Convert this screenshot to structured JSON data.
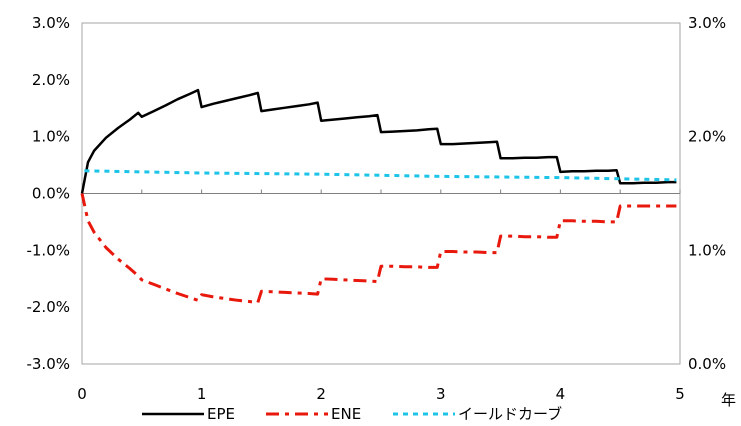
{
  "chart_data": {
    "type": "line",
    "xlabel": "年",
    "xlim": [
      0,
      5
    ],
    "x_ticks": [
      "0",
      "1",
      "2",
      "3",
      "4",
      "5"
    ],
    "ylim_left": [
      -0.03,
      0.03
    ],
    "y_ticks_left": [
      "3.0%",
      "2.0%",
      "1.0%",
      "0.0%",
      "-1.0%",
      "-2.0%",
      "-3.0%"
    ],
    "ylim_right": [
      0.0,
      0.03
    ],
    "y_ticks_right": [
      "3.0%",
      "2.0%",
      "1.0%",
      "0.0%"
    ],
    "grid": false,
    "legend_position": "bottom",
    "series": [
      {
        "name": "EPE",
        "axis": "left",
        "color": "#000000",
        "style": "solid",
        "x": [
          0,
          0.05,
          0.1,
          0.2,
          0.3,
          0.4,
          0.47,
          0.5,
          0.6,
          0.7,
          0.8,
          0.9,
          0.97,
          1.0,
          1.1,
          1.2,
          1.3,
          1.4,
          1.47,
          1.5,
          1.6,
          1.7,
          1.8,
          1.9,
          1.97,
          2.0,
          2.1,
          2.2,
          2.3,
          2.4,
          2.47,
          2.5,
          2.6,
          2.7,
          2.8,
          2.9,
          2.97,
          3.0,
          3.1,
          3.2,
          3.3,
          3.4,
          3.47,
          3.5,
          3.6,
          3.7,
          3.8,
          3.9,
          3.97,
          4.0,
          4.1,
          4.2,
          4.3,
          4.4,
          4.47,
          4.5,
          4.6,
          4.7,
          4.8,
          4.9,
          4.97
        ],
        "y": [
          0.0,
          0.0055,
          0.0075,
          0.0098,
          0.0115,
          0.013,
          0.0142,
          0.0135,
          0.0145,
          0.0155,
          0.0166,
          0.0175,
          0.0182,
          0.0152,
          0.0158,
          0.0163,
          0.0168,
          0.0173,
          0.0177,
          0.0145,
          0.0148,
          0.0151,
          0.0154,
          0.0157,
          0.016,
          0.0128,
          0.013,
          0.0132,
          0.0134,
          0.0136,
          0.0138,
          0.0108,
          0.0109,
          0.011,
          0.0111,
          0.0113,
          0.0114,
          0.0087,
          0.0087,
          0.0088,
          0.0089,
          0.009,
          0.0091,
          0.0062,
          0.0062,
          0.0063,
          0.0063,
          0.0064,
          0.0064,
          0.0038,
          0.0039,
          0.0039,
          0.004,
          0.004,
          0.0041,
          0.0018,
          0.0018,
          0.0019,
          0.0019,
          0.002,
          0.002
        ]
      },
      {
        "name": "ENE",
        "axis": "left",
        "color": "#e8180c",
        "style": "dash-dot",
        "x": [
          0,
          0.05,
          0.1,
          0.2,
          0.3,
          0.4,
          0.47,
          0.5,
          0.6,
          0.7,
          0.8,
          0.9,
          0.97,
          1.0,
          1.1,
          1.2,
          1.3,
          1.4,
          1.47,
          1.5,
          1.6,
          1.7,
          1.8,
          1.9,
          1.97,
          2.0,
          2.1,
          2.2,
          2.3,
          2.4,
          2.47,
          2.5,
          2.6,
          2.7,
          2.8,
          2.9,
          2.97,
          3.0,
          3.1,
          3.2,
          3.3,
          3.4,
          3.47,
          3.5,
          3.6,
          3.7,
          3.8,
          3.9,
          3.97,
          4.0,
          4.1,
          4.2,
          4.3,
          4.4,
          4.47,
          4.5,
          4.6,
          4.7,
          4.8,
          4.9,
          4.97
        ],
        "y": [
          0.0,
          -0.0048,
          -0.0068,
          -0.0095,
          -0.0115,
          -0.0132,
          -0.0145,
          -0.0152,
          -0.016,
          -0.0168,
          -0.0176,
          -0.0183,
          -0.0188,
          -0.0178,
          -0.0182,
          -0.0185,
          -0.0188,
          -0.019,
          -0.0192,
          -0.0172,
          -0.0173,
          -0.0174,
          -0.0175,
          -0.0176,
          -0.0177,
          -0.015,
          -0.0151,
          -0.0152,
          -0.0153,
          -0.0154,
          -0.0155,
          -0.0128,
          -0.0128,
          -0.0129,
          -0.0129,
          -0.013,
          -0.013,
          -0.0102,
          -0.0102,
          -0.0103,
          -0.0103,
          -0.0104,
          -0.0104,
          -0.0075,
          -0.0075,
          -0.0076,
          -0.0076,
          -0.0077,
          -0.0077,
          -0.0048,
          -0.0048,
          -0.0049,
          -0.0049,
          -0.005,
          -0.005,
          -0.0022,
          -0.0022,
          -0.0022,
          -0.0022,
          -0.0022,
          -0.0022
        ]
      },
      {
        "name": "イールドカーブ",
        "axis": "right",
        "color": "#1cc4e8",
        "style": "dotted",
        "x": [
          0.02,
          1,
          2,
          3,
          4,
          4.97
        ],
        "y": [
          0.017,
          0.0168,
          0.0167,
          0.0165,
          0.0164,
          0.0162
        ]
      }
    ]
  }
}
